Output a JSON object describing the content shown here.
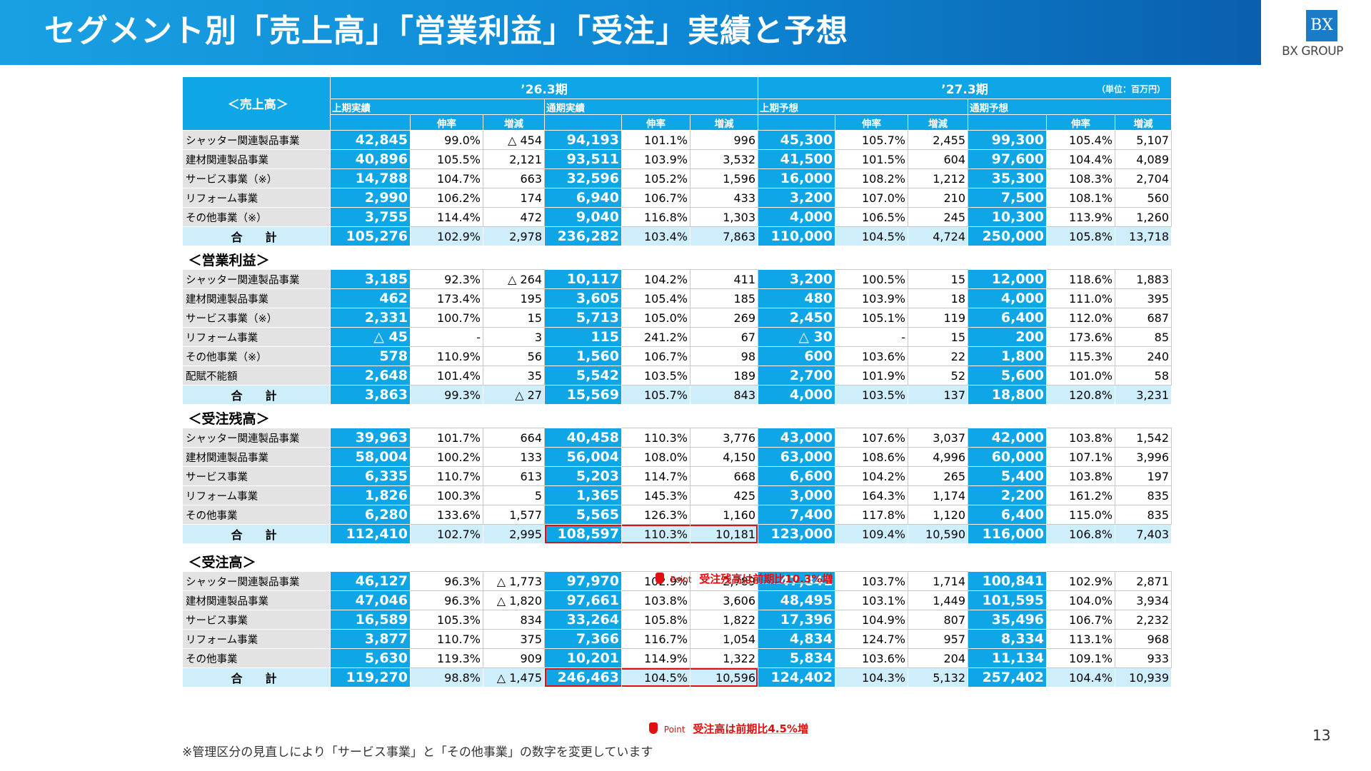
{
  "title": "セグメント別「売上高」「営業利益」「受注」実績と予想",
  "logo": {
    "mark": "BX",
    "name": "BX GROUP"
  },
  "period_a": "’26.3期",
  "period_b": "’27.3期",
  "unit": "（単位：百万円）",
  "groups": [
    "上期実績",
    "通期実績",
    "上期予想",
    "通期予想"
  ],
  "sub": {
    "growth": "伸率",
    "change": "増減"
  },
  "sections": [
    {
      "heading": "＜売上高＞",
      "rows": [
        [
          "シャッター関連製品事業",
          "42,845",
          "99.0%",
          "△ 454",
          "94,193",
          "101.1%",
          "996",
          "45,300",
          "105.7%",
          "2,455",
          "99,300",
          "105.4%",
          "5,107"
        ],
        [
          "建材関連製品事業",
          "40,896",
          "105.5%",
          "2,121",
          "93,511",
          "103.9%",
          "3,532",
          "41,500",
          "101.5%",
          "604",
          "97,600",
          "104.4%",
          "4,089"
        ],
        [
          "サービス事業（※）",
          "14,788",
          "104.7%",
          "663",
          "32,596",
          "105.2%",
          "1,596",
          "16,000",
          "108.2%",
          "1,212",
          "35,300",
          "108.3%",
          "2,704"
        ],
        [
          "リフォーム事業",
          "2,990",
          "106.2%",
          "174",
          "6,940",
          "106.7%",
          "433",
          "3,200",
          "107.0%",
          "210",
          "7,500",
          "108.1%",
          "560"
        ],
        [
          "その他事業（※）",
          "3,755",
          "114.4%",
          "472",
          "9,040",
          "116.8%",
          "1,303",
          "4,000",
          "106.5%",
          "245",
          "10,300",
          "113.9%",
          "1,260"
        ],
        [
          "合　計",
          "105,276",
          "102.9%",
          "2,978",
          "236,282",
          "103.4%",
          "7,863",
          "110,000",
          "104.5%",
          "4,724",
          "250,000",
          "105.8%",
          "13,718"
        ]
      ]
    },
    {
      "heading": "＜営業利益＞",
      "rows": [
        [
          "シャッター関連製品事業",
          "3,185",
          "92.3%",
          "△ 264",
          "10,117",
          "104.2%",
          "411",
          "3,200",
          "100.5%",
          "15",
          "12,000",
          "118.6%",
          "1,883"
        ],
        [
          "建材関連製品事業",
          "462",
          "173.4%",
          "195",
          "3,605",
          "105.4%",
          "185",
          "480",
          "103.9%",
          "18",
          "4,000",
          "111.0%",
          "395"
        ],
        [
          "サービス事業（※）",
          "2,331",
          "100.7%",
          "15",
          "5,713",
          "105.0%",
          "269",
          "2,450",
          "105.1%",
          "119",
          "6,400",
          "112.0%",
          "687"
        ],
        [
          "リフォーム事業",
          "△ 45",
          "-",
          "3",
          "115",
          "241.2%",
          "67",
          "△ 30",
          "-",
          "15",
          "200",
          "173.6%",
          "85"
        ],
        [
          "その他事業（※）",
          "578",
          "110.9%",
          "56",
          "1,560",
          "106.7%",
          "98",
          "600",
          "103.6%",
          "22",
          "1,800",
          "115.3%",
          "240"
        ],
        [
          "配賦不能額",
          "2,648",
          "101.4%",
          "35",
          "5,542",
          "103.5%",
          "189",
          "2,700",
          "101.9%",
          "52",
          "5,600",
          "101.0%",
          "58"
        ],
        [
          "合　計",
          "3,863",
          "99.3%",
          "△ 27",
          "15,569",
          "105.7%",
          "843",
          "4,000",
          "103.5%",
          "137",
          "18,800",
          "120.8%",
          "3,231"
        ]
      ]
    },
    {
      "heading": "＜受注残高＞",
      "rows": [
        [
          "シャッター関連製品事業",
          "39,963",
          "101.7%",
          "664",
          "40,458",
          "110.3%",
          "3,776",
          "43,000",
          "107.6%",
          "3,037",
          "42,000",
          "103.8%",
          "1,542"
        ],
        [
          "建材関連製品事業",
          "58,004",
          "100.2%",
          "133",
          "56,004",
          "108.0%",
          "4,150",
          "63,000",
          "108.6%",
          "4,996",
          "60,000",
          "107.1%",
          "3,996"
        ],
        [
          "サービス事業",
          "6,335",
          "110.7%",
          "613",
          "5,203",
          "114.7%",
          "668",
          "6,600",
          "104.2%",
          "265",
          "5,400",
          "103.8%",
          "197"
        ],
        [
          "リフォーム事業",
          "1,826",
          "100.3%",
          "5",
          "1,365",
          "145.3%",
          "425",
          "3,000",
          "164.3%",
          "1,174",
          "2,200",
          "161.2%",
          "835"
        ],
        [
          "その他事業",
          "6,280",
          "133.6%",
          "1,577",
          "5,565",
          "126.3%",
          "1,160",
          "7,400",
          "117.8%",
          "1,120",
          "6,400",
          "115.0%",
          "835"
        ],
        [
          "合　計",
          "112,410",
          "102.7%",
          "2,995",
          "108,597",
          "110.3%",
          "10,181",
          "123,000",
          "109.4%",
          "10,590",
          "116,000",
          "106.8%",
          "7,403"
        ]
      ]
    },
    {
      "heading": "＜受注高＞",
      "rows": [
        [
          "シャッター関連製品事業",
          "46,127",
          "96.3%",
          "△ 1,773",
          "97,970",
          "102.9%",
          "2,789",
          "47,841",
          "103.7%",
          "1,714",
          "100,841",
          "102.9%",
          "2,871"
        ],
        [
          "建材関連製品事業",
          "47,046",
          "96.3%",
          "△ 1,820",
          "97,661",
          "103.8%",
          "3,606",
          "48,495",
          "103.1%",
          "1,449",
          "101,595",
          "104.0%",
          "3,934"
        ],
        [
          "サービス事業",
          "16,589",
          "105.3%",
          "834",
          "33,264",
          "105.8%",
          "1,822",
          "17,396",
          "104.9%",
          "807",
          "35,496",
          "106.7%",
          "2,232"
        ],
        [
          "リフォーム事業",
          "3,877",
          "110.7%",
          "375",
          "7,366",
          "116.7%",
          "1,054",
          "4,834",
          "124.7%",
          "957",
          "8,334",
          "113.1%",
          "968"
        ],
        [
          "その他事業",
          "5,630",
          "119.3%",
          "909",
          "10,201",
          "114.9%",
          "1,322",
          "5,834",
          "103.6%",
          "204",
          "11,134",
          "109.1%",
          "933"
        ],
        [
          "合　計",
          "119,270",
          "98.8%",
          "△ 1,475",
          "246,463",
          "104.5%",
          "10,596",
          "124,402",
          "104.3%",
          "5,132",
          "257,402",
          "104.4%",
          "10,939"
        ]
      ]
    }
  ],
  "points": [
    {
      "label": "Point",
      "text": "受注残高は前期比10.3%増"
    },
    {
      "label": "Point",
      "text": "受注高は前期比4.5%増"
    }
  ],
  "note": "※管理区分の見直しにより「サービス事業」と「その他事業」の数字を変更しています",
  "page_number": "13"
}
